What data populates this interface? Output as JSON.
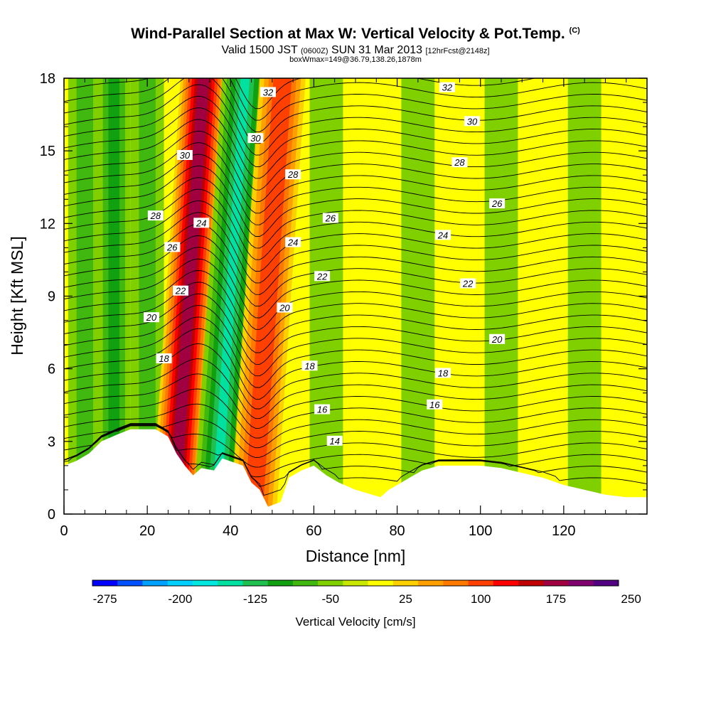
{
  "title": {
    "main": "Wind-Parallel Section at Max W: Vertical Velocity & Pot.Temp.",
    "copyright": "(C)",
    "valid_prefix": "Valid 1500 JST",
    "valid_utc": "(0600Z)",
    "valid_date": "SUN 31 Mar 2013",
    "forecast": "[12hrFcst@2148z]",
    "box": "boxWmax=149@36.79,138.26,1878m"
  },
  "chart_data": {
    "type": "heatmap",
    "xlabel": "Distance [nm]",
    "ylabel": "Height [Kft MSL]",
    "xlim": [
      0,
      140
    ],
    "ylim": [
      0,
      18
    ],
    "x_ticks": [
      "0",
      "20",
      "40",
      "60",
      "80",
      "100",
      "120"
    ],
    "y_ticks": [
      "0",
      "3",
      "6",
      "9",
      "12",
      "15",
      "18"
    ],
    "colorbar": {
      "title": "Vertical Velocity [cm/s]",
      "tick_labels": [
        "-275",
        "-200",
        "-125",
        "-50",
        "25",
        "100",
        "175",
        "250"
      ],
      "colors": [
        "#0000ff",
        "#0050ff",
        "#00a0ff",
        "#00d0ff",
        "#00e8e0",
        "#00e0a0",
        "#20c050",
        "#10a010",
        "#40b810",
        "#80d000",
        "#c8e800",
        "#ffff00",
        "#ffd000",
        "#ffa000",
        "#ff7800",
        "#ff4000",
        "#ff0000",
        "#c00000",
        "#a00040",
        "#800070",
        "#500080"
      ]
    },
    "vertical_velocity_bands": [
      {
        "x_center": 5,
        "w": -40
      },
      {
        "x_center": 12,
        "w": -80
      },
      {
        "x_center": 20,
        "w": -60
      },
      {
        "x_center": 30,
        "w": 200
      },
      {
        "x_center": 40,
        "w": -140
      },
      {
        "x_center": 49,
        "w": 120
      },
      {
        "x_center": 63,
        "w": -30
      },
      {
        "x_center": 85,
        "w": -20
      },
      {
        "x_center": 105,
        "w": -20
      },
      {
        "x_center": 125,
        "w": -15
      }
    ],
    "theta_contour_labels": [
      {
        "text": "32",
        "x": 49,
        "y": 17.4
      },
      {
        "text": "32",
        "x": 92,
        "y": 17.6
      },
      {
        "text": "30",
        "x": 46,
        "y": 15.5
      },
      {
        "text": "30",
        "x": 98,
        "y": 16.2
      },
      {
        "text": "30",
        "x": 29,
        "y": 14.8
      },
      {
        "text": "28",
        "x": 55,
        "y": 14.0
      },
      {
        "text": "28",
        "x": 95,
        "y": 14.5
      },
      {
        "text": "28",
        "x": 22,
        "y": 12.3
      },
      {
        "text": "26",
        "x": 64,
        "y": 12.2
      },
      {
        "text": "26",
        "x": 104,
        "y": 12.8
      },
      {
        "text": "26",
        "x": 26,
        "y": 11.0
      },
      {
        "text": "24",
        "x": 33,
        "y": 12.0
      },
      {
        "text": "24",
        "x": 55,
        "y": 11.2
      },
      {
        "text": "24",
        "x": 91,
        "y": 11.5
      },
      {
        "text": "22",
        "x": 28,
        "y": 9.2
      },
      {
        "text": "22",
        "x": 62,
        "y": 9.8
      },
      {
        "text": "22",
        "x": 97,
        "y": 9.5
      },
      {
        "text": "20",
        "x": 21,
        "y": 8.1
      },
      {
        "text": "20",
        "x": 53,
        "y": 8.5
      },
      {
        "text": "20",
        "x": 104,
        "y": 7.2
      },
      {
        "text": "18",
        "x": 24,
        "y": 6.4
      },
      {
        "text": "18",
        "x": 59,
        "y": 6.1
      },
      {
        "text": "18",
        "x": 91,
        "y": 5.8
      },
      {
        "text": "16",
        "x": 62,
        "y": 4.3
      },
      {
        "text": "16",
        "x": 89,
        "y": 4.5
      },
      {
        "text": "14",
        "x": 65,
        "y": 3.0
      }
    ],
    "terrain_kft": [
      [
        0,
        2
      ],
      [
        3,
        2.2
      ],
      [
        6,
        2.5
      ],
      [
        9,
        3.0
      ],
      [
        13,
        3.3
      ],
      [
        16,
        3.5
      ],
      [
        22,
        3.5
      ],
      [
        25,
        3.2
      ],
      [
        27,
        2.5
      ],
      [
        29,
        2.0
      ],
      [
        31,
        1.6
      ],
      [
        33,
        1.9
      ],
      [
        36,
        1.8
      ],
      [
        38,
        2.3
      ],
      [
        43,
        2.0
      ],
      [
        45,
        1.3
      ],
      [
        47,
        1.0
      ],
      [
        49,
        0.3
      ],
      [
        52,
        0.5
      ],
      [
        54,
        1.5
      ],
      [
        57,
        1.8
      ],
      [
        60,
        2.0
      ],
      [
        63,
        1.6
      ],
      [
        66,
        1.3
      ],
      [
        70,
        1.0
      ],
      [
        74,
        0.8
      ],
      [
        76,
        0.7
      ],
      [
        78,
        1.0
      ],
      [
        80,
        1.2
      ],
      [
        83,
        1.5
      ],
      [
        86,
        1.8
      ],
      [
        90,
        2.0
      ],
      [
        96,
        2.0
      ],
      [
        100,
        2.0
      ],
      [
        105,
        1.9
      ],
      [
        110,
        1.7
      ],
      [
        115,
        1.5
      ],
      [
        120,
        1.2
      ],
      [
        125,
        1.0
      ],
      [
        130,
        0.8
      ],
      [
        135,
        0.7
      ],
      [
        140,
        0.7
      ]
    ]
  }
}
